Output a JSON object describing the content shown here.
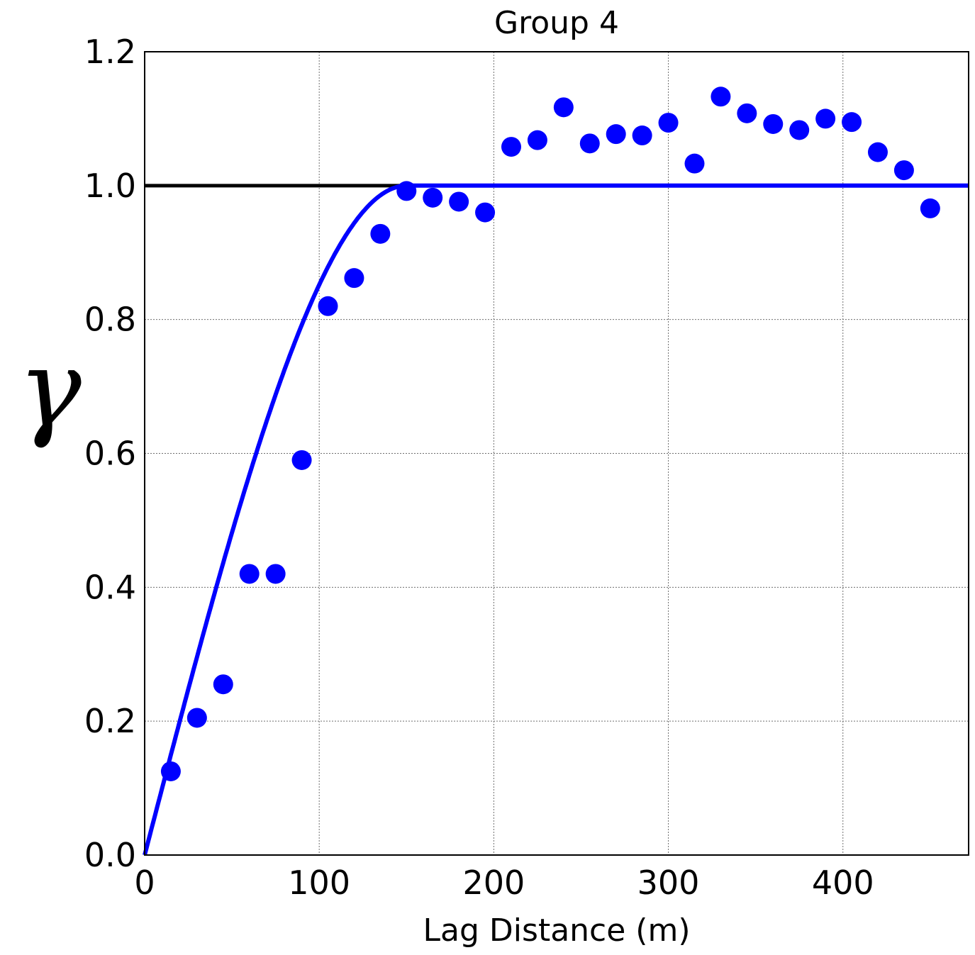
{
  "chart_data": {
    "type": "scatter",
    "title": "Group 4",
    "xlabel": "Lag Distance (m)",
    "ylabel": "γ",
    "xlim": [
      0,
      472
    ],
    "ylim": [
      0,
      1.2
    ],
    "x_ticks": [
      0,
      100,
      200,
      300,
      400
    ],
    "y_ticks": [
      0.0,
      0.2,
      0.4,
      0.6,
      0.8,
      1.0,
      1.2
    ],
    "x_tick_labels": [
      "0",
      "100",
      "200",
      "300",
      "400"
    ],
    "y_tick_labels": [
      "0.0",
      "0.2",
      "0.4",
      "0.6",
      "0.8",
      "1.0",
      "1.2"
    ],
    "grid": true,
    "series": [
      {
        "kind": "points",
        "color": "#0000ff",
        "x": [
          15,
          30,
          45,
          60,
          75,
          90,
          105,
          120,
          135,
          150,
          165,
          180,
          195,
          210,
          225,
          240,
          255,
          270,
          285,
          300,
          315,
          330,
          345,
          360,
          375,
          390,
          405,
          420,
          435,
          450
        ],
        "y": [
          0.125,
          0.205,
          0.255,
          0.42,
          0.42,
          0.59,
          0.82,
          0.862,
          0.928,
          0.992,
          0.982,
          0.976,
          0.96,
          1.058,
          1.068,
          1.117,
          1.063,
          1.077,
          1.075,
          1.094,
          1.033,
          1.133,
          1.108,
          1.092,
          1.083,
          1.1,
          1.095,
          1.05,
          1.023,
          0.966
        ]
      },
      {
        "kind": "model",
        "model": "spherical",
        "color": "#0000ff",
        "sill": 1.0,
        "range": 150,
        "nugget": 0
      },
      {
        "kind": "hline",
        "color": "#000000",
        "y": 1.0
      }
    ]
  }
}
